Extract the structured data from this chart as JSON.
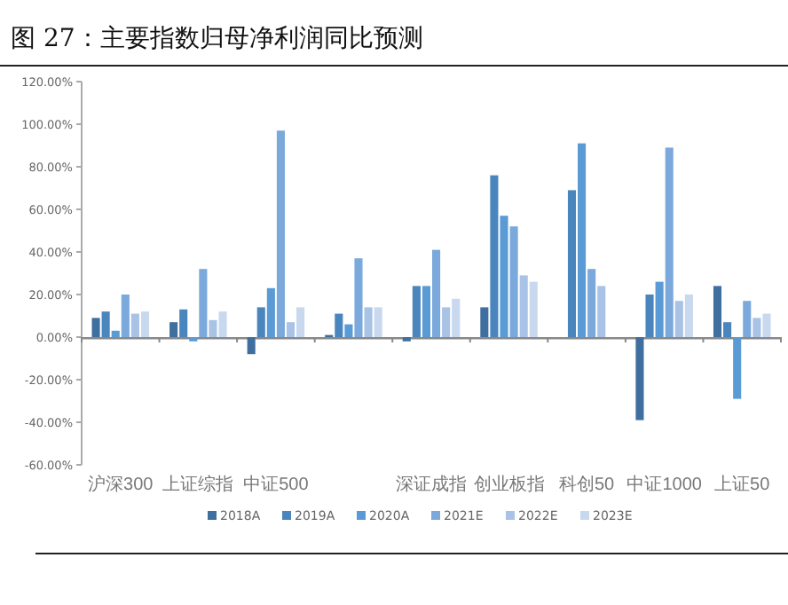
{
  "chart_data": {
    "type": "bar",
    "title": "图 27：主要指数归母净利润同比预测",
    "categories": [
      "沪深300",
      "上证综指",
      "中证500",
      null,
      "深证成指",
      "创业板指",
      "科创50",
      "中证1000",
      "上证50"
    ],
    "series": [
      {
        "name": "2018A",
        "color": "#3f6f9f",
        "values": [
          9,
          7,
          -8,
          1,
          -2,
          14,
          null,
          -39,
          24
        ]
      },
      {
        "name": "2019A",
        "color": "#4a85bd",
        "values": [
          12,
          13,
          14,
          11,
          24,
          76,
          69,
          20,
          7
        ]
      },
      {
        "name": "2020A",
        "color": "#5b9bd5",
        "values": [
          3,
          -2,
          23,
          6,
          24,
          57,
          91,
          26,
          -29
        ]
      },
      {
        "name": "2021E",
        "color": "#7ba9dc",
        "values": [
          20,
          32,
          97,
          37,
          41,
          52,
          32,
          89,
          17
        ]
      },
      {
        "name": "2022E",
        "color": "#a8c3e5",
        "values": [
          11,
          8,
          7,
          14,
          14,
          29,
          24,
          17,
          9
        ]
      },
      {
        "name": "2023E",
        "color": "#c8d8ee",
        "values": [
          12,
          12,
          14,
          14,
          18,
          26,
          null,
          20,
          11
        ]
      }
    ],
    "ylim": [
      -60,
      120
    ],
    "yticks": [
      {
        "value": -60,
        "label": "-60.00%"
      },
      {
        "value": -40,
        "label": "-40.00%"
      },
      {
        "value": -20,
        "label": "-20.00%"
      },
      {
        "value": 0,
        "label": "0.00%"
      },
      {
        "value": 20,
        "label": "20.00%"
      },
      {
        "value": 40,
        "label": "40.00%"
      },
      {
        "value": 60,
        "label": "60.00%"
      },
      {
        "value": 80,
        "label": "80.00%"
      },
      {
        "value": 100,
        "label": "100.00%"
      },
      {
        "value": 120,
        "label": "120.00%"
      }
    ],
    "legend": "bottom"
  }
}
